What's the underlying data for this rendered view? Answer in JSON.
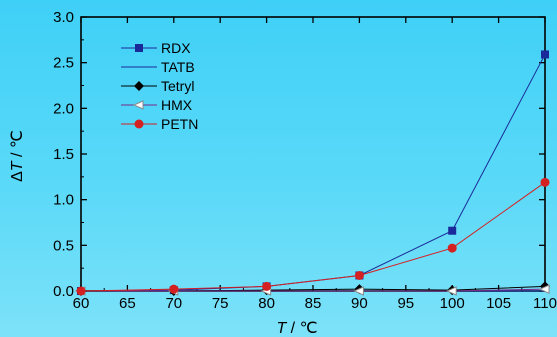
{
  "chart_data": {
    "type": "line",
    "x": [
      60,
      70,
      80,
      90,
      100,
      110
    ],
    "xlabel": {
      "symbol": "T",
      "unit": " / ℃"
    },
    "ylabel": {
      "prefix": "Δ",
      "symbol": "T",
      "unit": " / ℃"
    },
    "xlim": [
      60,
      110
    ],
    "ylim": [
      0,
      3.0
    ],
    "xticks": [
      "60",
      "65",
      "70",
      "75",
      "80",
      "85",
      "90",
      "95",
      "100",
      "105",
      "110"
    ],
    "yticks": [
      "0.0",
      "0.5",
      "1.0",
      "1.5",
      "2.0",
      "2.5",
      "3.0"
    ],
    "grid": false,
    "legend_position": "top-left",
    "series": [
      {
        "name": "RDX",
        "values": [
          0.0,
          0.01,
          0.05,
          0.17,
          0.66,
          2.59
        ],
        "color": "#1a2a9a",
        "marker": "square"
      },
      {
        "name": "TATB",
        "values": [
          0.0,
          0.0,
          0.0,
          0.0,
          0.0,
          0.0
        ],
        "color": "#1a2a9a",
        "marker": "none"
      },
      {
        "name": "Tetryl",
        "values": [
          0.0,
          0.0,
          0.01,
          0.02,
          0.01,
          0.05
        ],
        "color": "#000000",
        "marker": "diamond"
      },
      {
        "name": "HMX",
        "values": [
          0.0,
          0.0,
          0.0,
          0.0,
          0.0,
          0.02
        ],
        "color": "#7a2a8a",
        "marker": "triangle-left"
      },
      {
        "name": "PETN",
        "values": [
          0.0,
          0.02,
          0.05,
          0.17,
          0.47,
          1.19
        ],
        "color": "#d42020",
        "marker": "circle"
      }
    ]
  }
}
